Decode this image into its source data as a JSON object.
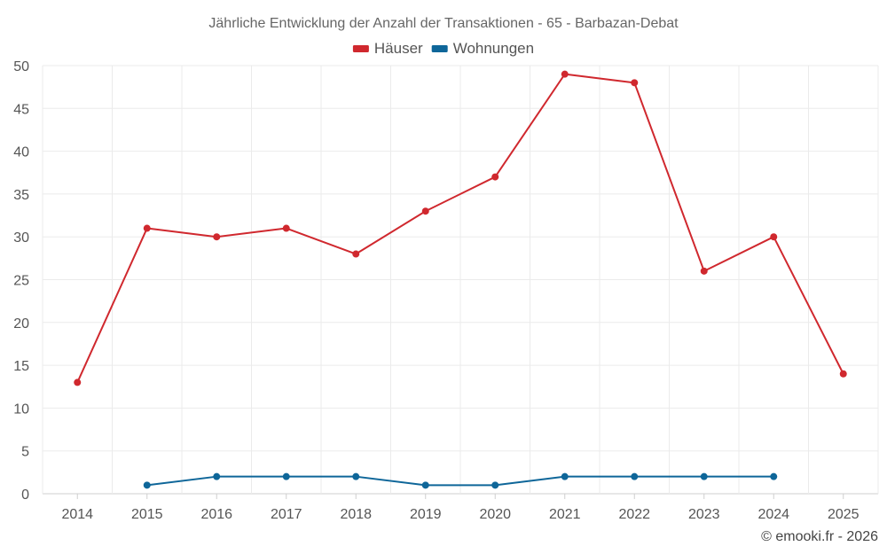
{
  "chart_data": {
    "type": "line",
    "title": "Jährliche Entwicklung der Anzahl der Transaktionen - 65 - Barbazan-Debat",
    "categories": [
      "2014",
      "2015",
      "2016",
      "2017",
      "2018",
      "2019",
      "2020",
      "2021",
      "2022",
      "2023",
      "2024",
      "2025"
    ],
    "series": [
      {
        "name": "Häuser",
        "color": "#d0282e",
        "values": [
          13,
          31,
          30,
          31,
          28,
          33,
          37,
          49,
          48,
          26,
          30,
          14
        ]
      },
      {
        "name": "Wohnungen",
        "color": "#0e6699",
        "values": [
          null,
          1,
          2,
          2,
          2,
          1,
          1,
          2,
          2,
          2,
          2,
          null
        ]
      }
    ],
    "ylim": [
      0,
      50
    ],
    "yticks": [
      0,
      5,
      10,
      15,
      20,
      25,
      30,
      35,
      40,
      45,
      50
    ],
    "xlabel": "",
    "ylabel": "",
    "grid": true,
    "legend_position": "top-center"
  },
  "credit": "© emooki.fr - 2026"
}
